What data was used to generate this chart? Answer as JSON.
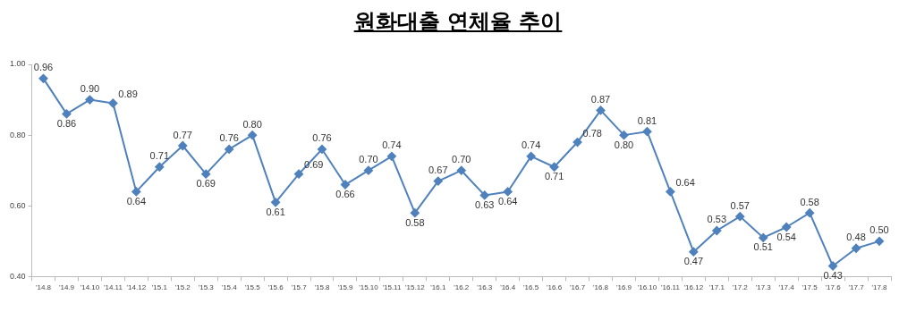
{
  "chart_data": {
    "type": "line",
    "title": "원화대출 연체율 추이",
    "categories": [
      "'14.8",
      "'14.9",
      "'14.10",
      "'14.11",
      "'14.12",
      "'15.1",
      "'15.2",
      "'15.3",
      "'15.4",
      "'15.5",
      "'15.6",
      "'15.7",
      "'15.8",
      "'15.9",
      "'15.10",
      "'15.11",
      "'15.12",
      "'16.1",
      "'16.2",
      "'16.3",
      "'16.4",
      "'16.5",
      "'16.6",
      "'16.7",
      "'16.8",
      "'16.9",
      "'16.10",
      "'16.11",
      "'16.12",
      "'17.1",
      "'17.2",
      "'17.3",
      "'17.4",
      "'17.5",
      "'17.6",
      "'17.7",
      "'17.8"
    ],
    "series": [
      {
        "color": "#4f81bd",
        "values": [
          0.96,
          0.86,
          0.9,
          0.89,
          0.64,
          0.71,
          0.77,
          0.69,
          0.76,
          0.8,
          0.61,
          0.69,
          0.76,
          0.66,
          0.7,
          0.74,
          0.58,
          0.67,
          0.7,
          0.63,
          0.64,
          0.74,
          0.71,
          0.78,
          0.87,
          0.8,
          0.81,
          0.64,
          0.47,
          0.53,
          0.57,
          0.51,
          0.54,
          0.58,
          0.43,
          0.48,
          0.5
        ],
        "value_labels": [
          "0.96",
          "0.86",
          "0.90",
          "0.89",
          "0.64",
          "0.71",
          "0.77",
          "0.69",
          "0.76",
          "0.80",
          "0.61",
          "0.69",
          "0.76",
          "0.66",
          "0.70",
          "0.74",
          "0.58",
          "0.67",
          "0.70",
          "0.63",
          "0.64",
          "0.74",
          "0.71",
          "0.78",
          "0.87",
          "0.80",
          "0.81",
          "0.64",
          "0.47",
          "0.53",
          "0.57",
          "0.51",
          "0.54",
          "0.58",
          "0.43",
          "0.48",
          "0.50"
        ]
      }
    ],
    "ylim": [
      0.4,
      1.0
    ],
    "yticks": [
      {
        "value": 0.4,
        "label": "0.40"
      },
      {
        "value": 0.6,
        "label": "0.60"
      },
      {
        "value": 0.8,
        "label": "0.80"
      },
      {
        "value": 1.0,
        "label": "1.00"
      }
    ],
    "marker": "diamond",
    "line_style": "solid",
    "grid": false,
    "legend": false
  }
}
